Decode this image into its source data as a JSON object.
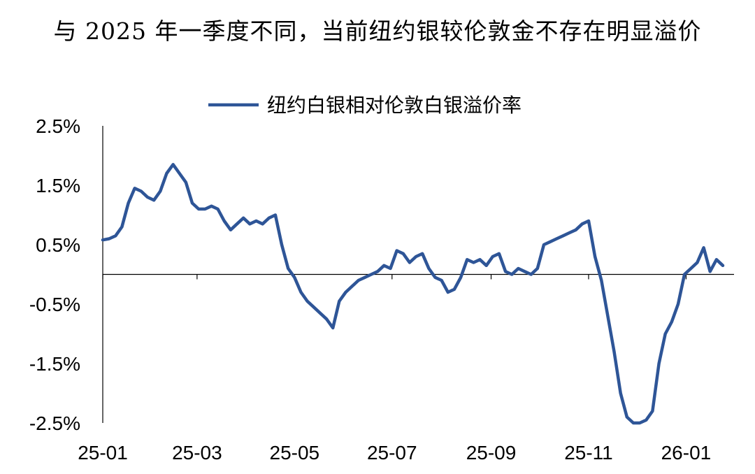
{
  "title": "与 2025 年一季度不同，当前纽约银较伦敦金不存在明显溢价",
  "chart_data": {
    "type": "line",
    "title": "与 2025 年一季度不同，当前纽约银较伦敦金不存在明显溢价",
    "xlabel": "",
    "ylabel": "",
    "ylim": [
      -2.5,
      2.5
    ],
    "y_ticks": [
      2.5,
      1.5,
      0.5,
      -0.5,
      -1.5,
      -2.5
    ],
    "y_tick_labels": [
      "2.5%",
      "1.5%",
      "0.5%",
      "-0.5%",
      "-1.5%",
      "-2.5%"
    ],
    "x_range": [
      "2025-01-01",
      "2026-01-31"
    ],
    "x_ticks": [
      "2025-01-01",
      "2025-03-01",
      "2025-05-01",
      "2025-07-01",
      "2025-09-01",
      "2025-11-01",
      "2026-01-01"
    ],
    "x_tick_labels": [
      "25-01",
      "25-03",
      "25-05",
      "25-07",
      "25-09",
      "25-11",
      "26-01"
    ],
    "legend_position": "top-center",
    "grid": false,
    "series": [
      {
        "name": "纽约白银相对伦敦白银溢价率",
        "color": "#2e5597",
        "x": [
          "2025-01-01",
          "2025-01-05",
          "2025-01-09",
          "2025-01-13",
          "2025-01-17",
          "2025-01-21",
          "2025-01-25",
          "2025-01-29",
          "2025-02-02",
          "2025-02-06",
          "2025-02-10",
          "2025-02-14",
          "2025-02-18",
          "2025-02-22",
          "2025-02-26",
          "2025-03-02",
          "2025-03-06",
          "2025-03-10",
          "2025-03-14",
          "2025-03-18",
          "2025-03-22",
          "2025-03-26",
          "2025-03-30",
          "2025-04-03",
          "2025-04-07",
          "2025-04-11",
          "2025-04-15",
          "2025-04-19",
          "2025-04-23",
          "2025-04-27",
          "2025-05-01",
          "2025-05-05",
          "2025-05-09",
          "2025-05-13",
          "2025-05-17",
          "2025-05-21",
          "2025-05-25",
          "2025-05-29",
          "2025-06-02",
          "2025-06-06",
          "2025-06-10",
          "2025-06-14",
          "2025-06-18",
          "2025-06-22",
          "2025-06-26",
          "2025-06-30",
          "2025-07-04",
          "2025-07-08",
          "2025-07-12",
          "2025-07-16",
          "2025-07-20",
          "2025-07-24",
          "2025-07-28",
          "2025-08-01",
          "2025-08-05",
          "2025-08-09",
          "2025-08-13",
          "2025-08-17",
          "2025-08-21",
          "2025-08-25",
          "2025-08-29",
          "2025-09-02",
          "2025-09-06",
          "2025-09-10",
          "2025-09-14",
          "2025-09-18",
          "2025-09-22",
          "2025-09-26",
          "2025-09-30",
          "2025-10-04",
          "2025-10-08",
          "2025-10-12",
          "2025-10-16",
          "2025-10-20",
          "2025-10-24",
          "2025-10-28",
          "2025-11-01",
          "2025-11-05",
          "2025-11-09",
          "2025-11-13",
          "2025-11-17",
          "2025-11-21",
          "2025-11-25",
          "2025-11-29",
          "2025-12-03",
          "2025-12-07",
          "2025-12-11",
          "2025-12-15",
          "2025-12-19",
          "2025-12-23",
          "2025-12-27",
          "2025-12-31",
          "2026-01-04",
          "2026-01-08",
          "2026-01-12",
          "2026-01-16",
          "2026-01-20",
          "2026-01-24"
        ],
        "values": [
          0.58,
          0.6,
          0.65,
          0.8,
          1.2,
          1.45,
          1.4,
          1.3,
          1.25,
          1.4,
          1.7,
          1.85,
          1.7,
          1.55,
          1.2,
          1.1,
          1.1,
          1.15,
          1.1,
          0.9,
          0.75,
          0.85,
          0.95,
          0.85,
          0.9,
          0.85,
          0.95,
          1.0,
          0.5,
          0.1,
          -0.05,
          -0.3,
          -0.45,
          -0.55,
          -0.65,
          -0.75,
          -0.9,
          -0.45,
          -0.3,
          -0.2,
          -0.1,
          -0.05,
          0.0,
          0.05,
          0.15,
          0.1,
          0.4,
          0.35,
          0.2,
          0.3,
          0.35,
          0.1,
          -0.05,
          -0.1,
          -0.3,
          -0.25,
          -0.05,
          0.25,
          0.2,
          0.25,
          0.15,
          0.3,
          0.35,
          0.05,
          0.0,
          0.1,
          0.05,
          0.0,
          0.1,
          0.5,
          0.55,
          0.6,
          0.65,
          0.7,
          0.75,
          0.85,
          0.9,
          0.3,
          -0.1,
          -0.7,
          -1.3,
          -2.0,
          -2.4,
          -2.55,
          -2.6,
          -2.45,
          -2.3,
          -1.5,
          -1.0,
          -0.8,
          -0.5,
          0.0,
          0.1,
          0.2,
          0.45,
          0.05,
          0.25,
          0.15
        ]
      }
    ],
    "zero_line": true
  }
}
